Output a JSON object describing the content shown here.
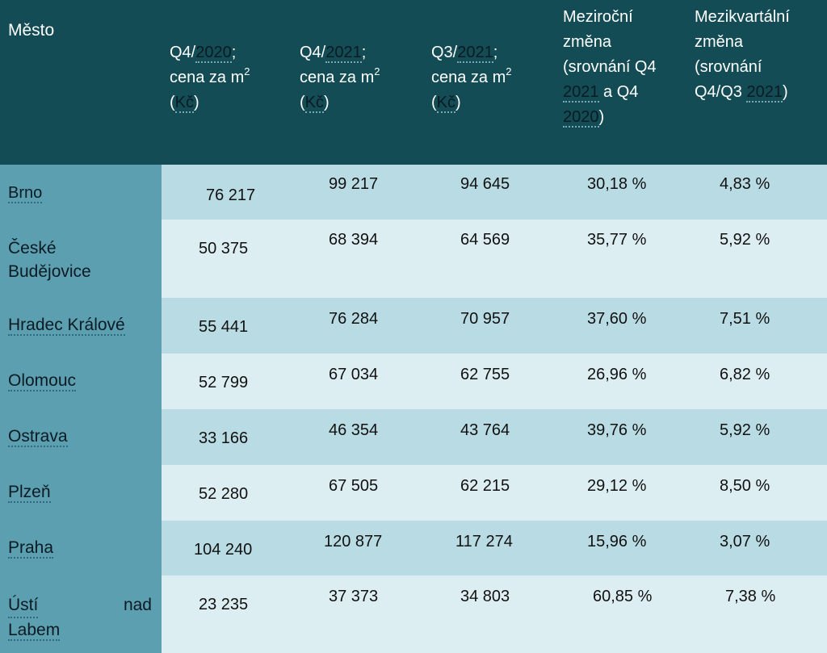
{
  "table": {
    "headers": {
      "city": "Město",
      "q4_2020": {
        "prefix": "Q4/",
        "year": "2020",
        "suffix": ";",
        "line2": "cena za m",
        "sup": "2",
        "open": "(",
        "currency": "Kč",
        "close": ")"
      },
      "q4_2021": {
        "prefix": "Q4/",
        "year": "2021",
        "suffix": ";",
        "line2": "cena za m",
        "sup": "2",
        "open": "(",
        "currency": "Kč",
        "close": ")"
      },
      "q3_2021": {
        "prefix": "Q3/",
        "year": "2021",
        "suffix": ";",
        "line2": "cena za m",
        "sup": "2",
        "open": "(",
        "currency": "Kč",
        "close": ")"
      },
      "yoy": {
        "l1": "Meziroční",
        "l2": "změna",
        "l3": "(srovnání Q4",
        "l4a": "2021",
        "l4b": " a Q4",
        "l5a": "2020",
        "l5b": ")"
      },
      "qoq": {
        "l1": "Mezikvartální",
        "l2": "změna",
        "l3": "(srovnání",
        "l4a": "Q4/Q3 ",
        "l4b": "2021",
        "l4c": ")"
      }
    },
    "rows": [
      {
        "city": "Brno",
        "q4_2020": "76 217",
        "q4_2021": "99 217",
        "q3_2021": "94 645",
        "yoy": "30,18 %",
        "qoq": "4,83 %"
      },
      {
        "city1": "České",
        "city2": "Budějovice",
        "q4_2020": "50 375",
        "q4_2021": "68 394",
        "q3_2021": "64 569",
        "yoy": "35,77 %",
        "qoq": "5,92 %"
      },
      {
        "city": "Hradec Králové",
        "q4_2020": "55 441",
        "q4_2021": "76 284",
        "q3_2021": "70 957",
        "yoy": "37,60 %",
        "qoq": "7,51 %"
      },
      {
        "city": "Olomouc",
        "q4_2020": "52 799",
        "q4_2021": "67 034",
        "q3_2021": "62 755",
        "yoy": "26,96 %",
        "qoq": "6,82 %"
      },
      {
        "city": "Ostrava",
        "q4_2020": "33 166",
        "q4_2021": "46 354",
        "q3_2021": "43 764",
        "yoy": "39,76 %",
        "qoq": "5,92 %"
      },
      {
        "city": "Plzeň",
        "q4_2020": "52 280",
        "q4_2021": "67 505",
        "q3_2021": "62 215",
        "yoy": "29,12 %",
        "qoq": "8,50 %"
      },
      {
        "city": "Praha",
        "q4_2020": "104 240",
        "q4_2021": "120 877",
        "q3_2021": "117 274",
        "yoy": "15,96 %",
        "qoq": "3,07 %"
      },
      {
        "city1a": "Ústí",
        "city1b": "nad",
        "city2": "Labem",
        "q4_2020": "23 235",
        "q4_2021": "37 373",
        "q3_2021": "34 803",
        "yoy": "60,85 %",
        "qoq": "7,38 %"
      }
    ]
  },
  "colors": {
    "header_bg": "#134c55",
    "city_col_bg": "#5c9fb0",
    "row_dark": "#b9dbe3",
    "row_light": "#ddeef3"
  }
}
